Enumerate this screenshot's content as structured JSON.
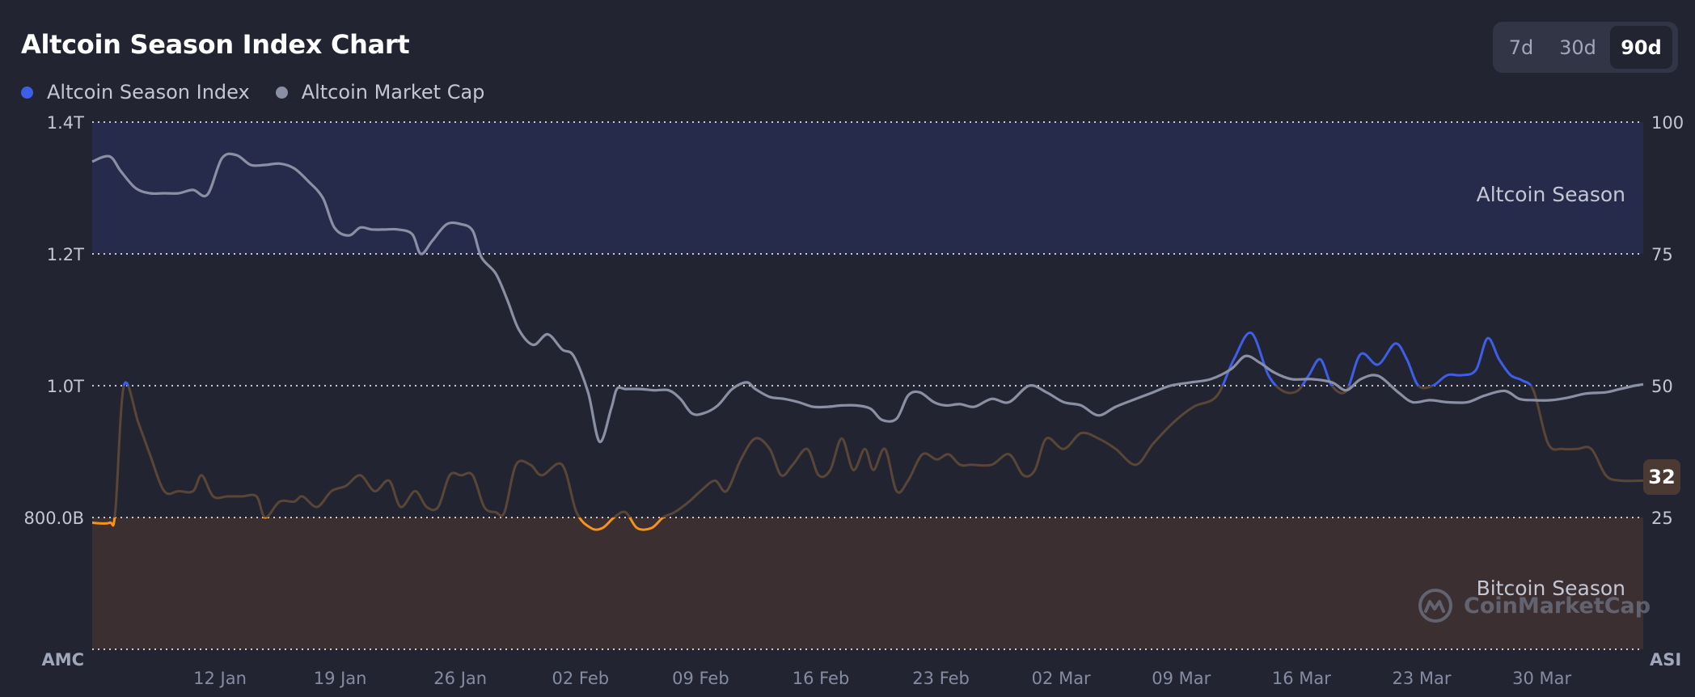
{
  "header": {
    "title": "Altcoin Season Index Chart",
    "legend": [
      {
        "label": "Altcoin Season Index",
        "color": "#3e5ee8"
      },
      {
        "label": "Altcoin Market Cap",
        "color": "#8a8fa3"
      }
    ],
    "ranges": [
      {
        "label": "7d",
        "active": false
      },
      {
        "label": "30d",
        "active": false
      },
      {
        "label": "90d",
        "active": true
      }
    ]
  },
  "chart_data": {
    "type": "line",
    "left_axis": {
      "title": "AMC",
      "ticks": [
        "1.4T",
        "1.2T",
        "1.0T",
        "800.0B"
      ],
      "range": [
        600,
        1400
      ],
      "unit": "B"
    },
    "right_axis": {
      "title": "ASI",
      "ticks": [
        "100",
        "75",
        "50",
        "25"
      ],
      "range": [
        0,
        100
      ]
    },
    "x_ticks": [
      "12 Jan",
      "19 Jan",
      "26 Jan",
      "02 Feb",
      "09 Feb",
      "16 Feb",
      "23 Feb",
      "02 Mar",
      "09 Mar",
      "16 Mar",
      "23 Mar",
      "30 Mar"
    ],
    "zones": [
      {
        "label": "Altcoin Season",
        "from": 75,
        "to": 100,
        "color": "#262b4b"
      },
      {
        "label": "Bitcoin Season",
        "from": 0,
        "to": 25,
        "color": "#3b2f32"
      }
    ],
    "current_index": "32",
    "series": [
      {
        "name": "Altcoin Market Cap",
        "axis": "left",
        "color": "#8a8fa3",
        "points": [
          [
            0,
            1340
          ],
          [
            0.6,
            1348
          ],
          [
            1,
            1325
          ],
          [
            1.5,
            1300
          ],
          [
            2,
            1292
          ],
          [
            2.5,
            1292
          ],
          [
            3,
            1292
          ],
          [
            3.5,
            1297
          ],
          [
            4,
            1290
          ],
          [
            4.5,
            1345
          ],
          [
            5,
            1350
          ],
          [
            5.5,
            1335
          ],
          [
            6,
            1335
          ],
          [
            6.5,
            1337
          ],
          [
            7,
            1330
          ],
          [
            7.5,
            1310
          ],
          [
            8,
            1285
          ],
          [
            8.4,
            1240
          ],
          [
            8.9,
            1228
          ],
          [
            9.3,
            1240
          ],
          [
            9.7,
            1237
          ],
          [
            10.2,
            1237
          ],
          [
            10.6,
            1237
          ],
          [
            11.1,
            1230
          ],
          [
            11.4,
            1200
          ],
          [
            11.8,
            1220
          ],
          [
            12.3,
            1245
          ],
          [
            12.8,
            1245
          ],
          [
            13.2,
            1235
          ],
          [
            13.5,
            1195
          ],
          [
            14,
            1170
          ],
          [
            14.4,
            1130
          ],
          [
            14.8,
            1085
          ],
          [
            15.3,
            1062
          ],
          [
            15.8,
            1078
          ],
          [
            16.3,
            1055
          ],
          [
            16.7,
            1045
          ],
          [
            17.2,
            990
          ],
          [
            17.6,
            915
          ],
          [
            18,
            965
          ],
          [
            18.2,
            995
          ],
          [
            18.5,
            995
          ],
          [
            19,
            995
          ],
          [
            19.5,
            993
          ],
          [
            20,
            993
          ],
          [
            20.4,
            980
          ],
          [
            20.8,
            958
          ],
          [
            21.2,
            958
          ],
          [
            21.7,
            970
          ],
          [
            22.2,
            995
          ],
          [
            22.7,
            1005
          ],
          [
            23,
            995
          ],
          [
            23.5,
            983
          ],
          [
            24,
            980
          ],
          [
            24.5,
            975
          ],
          [
            25,
            968
          ],
          [
            25.5,
            968
          ],
          [
            26,
            970
          ],
          [
            26.5,
            970
          ],
          [
            27,
            965
          ],
          [
            27.4,
            948
          ],
          [
            27.9,
            950
          ],
          [
            28.3,
            985
          ],
          [
            28.7,
            990
          ],
          [
            29.2,
            975
          ],
          [
            29.6,
            970
          ],
          [
            30.1,
            972
          ],
          [
            30.6,
            968
          ],
          [
            31.2,
            980
          ],
          [
            31.8,
            975
          ],
          [
            32.5,
            1000
          ],
          [
            33.1,
            990
          ],
          [
            33.7,
            975
          ],
          [
            34.3,
            970
          ],
          [
            34.9,
            955
          ],
          [
            35.5,
            968
          ],
          [
            36.2,
            980
          ],
          [
            36.8,
            990
          ],
          [
            37.4,
            1000
          ],
          [
            38.1,
            1005
          ],
          [
            38.8,
            1010
          ],
          [
            39.5,
            1025
          ],
          [
            40,
            1045
          ],
          [
            40.5,
            1035
          ],
          [
            41,
            1020
          ],
          [
            41.6,
            1010
          ],
          [
            42.3,
            1010
          ],
          [
            43,
            1005
          ],
          [
            43.5,
            993
          ],
          [
            44,
            1010
          ],
          [
            44.6,
            1015
          ],
          [
            45.3,
            990
          ],
          [
            45.8,
            975
          ],
          [
            46.4,
            978
          ],
          [
            47,
            975
          ],
          [
            47.7,
            975
          ],
          [
            48.3,
            985
          ],
          [
            49,
            992
          ],
          [
            49.5,
            980
          ],
          [
            50,
            978
          ],
          [
            50.6,
            978
          ],
          [
            51.2,
            982
          ],
          [
            51.8,
            988
          ],
          [
            52.5,
            990
          ],
          [
            53,
            995
          ],
          [
            53.5,
            1000
          ],
          [
            53.8,
            1002
          ]
        ]
      },
      {
        "name": "Altcoin Season Index",
        "axis": "right",
        "colors": {
          "altcoin": "#3e5ee8",
          "neutral": "#5a4636",
          "bitcoin": "#f7931a"
        },
        "points": [
          [
            0,
            24
          ],
          [
            0.6,
            24
          ],
          [
            0.8,
            26
          ],
          [
            1.1,
            50
          ],
          [
            1.6,
            43
          ],
          [
            2,
            37
          ],
          [
            2.5,
            30
          ],
          [
            3,
            30
          ],
          [
            3.5,
            30
          ],
          [
            3.8,
            33
          ],
          [
            4.2,
            29
          ],
          [
            4.7,
            29
          ],
          [
            5.2,
            29
          ],
          [
            5.7,
            29
          ],
          [
            6,
            25
          ],
          [
            6.5,
            28
          ],
          [
            7,
            28
          ],
          [
            7.3,
            29
          ],
          [
            7.8,
            27
          ],
          [
            8.3,
            30
          ],
          [
            8.8,
            31
          ],
          [
            9.3,
            33
          ],
          [
            9.8,
            30
          ],
          [
            10.3,
            32
          ],
          [
            10.7,
            27
          ],
          [
            11.2,
            30
          ],
          [
            11.6,
            27
          ],
          [
            12,
            27
          ],
          [
            12.4,
            33
          ],
          [
            12.8,
            33
          ],
          [
            13.2,
            33
          ],
          [
            13.6,
            27
          ],
          [
            14,
            26
          ],
          [
            14.3,
            26
          ],
          [
            14.7,
            35
          ],
          [
            15.2,
            35
          ],
          [
            15.6,
            33
          ],
          [
            16.3,
            35
          ],
          [
            16.8,
            26
          ],
          [
            17.3,
            23
          ],
          [
            17.7,
            23
          ],
          [
            18.1,
            25
          ],
          [
            18.5,
            26
          ],
          [
            18.9,
            23
          ],
          [
            19.4,
            23
          ],
          [
            19.8,
            25
          ],
          [
            20.2,
            26
          ],
          [
            20.7,
            28
          ],
          [
            21.1,
            30
          ],
          [
            21.6,
            32
          ],
          [
            22,
            30
          ],
          [
            22.5,
            36
          ],
          [
            23,
            40
          ],
          [
            23.5,
            38
          ],
          [
            23.9,
            33
          ],
          [
            24.3,
            35
          ],
          [
            24.8,
            38
          ],
          [
            25.2,
            33
          ],
          [
            25.6,
            34
          ],
          [
            26,
            40
          ],
          [
            26.4,
            34
          ],
          [
            26.8,
            38
          ],
          [
            27.1,
            34
          ],
          [
            27.5,
            38
          ],
          [
            27.9,
            30
          ],
          [
            28.3,
            32
          ],
          [
            28.8,
            37
          ],
          [
            29.3,
            36
          ],
          [
            29.7,
            37
          ],
          [
            30.1,
            35
          ],
          [
            30.5,
            35
          ],
          [
            31.2,
            35
          ],
          [
            31.8,
            37
          ],
          [
            32.3,
            33
          ],
          [
            32.7,
            34
          ],
          [
            33.1,
            40
          ],
          [
            33.7,
            38
          ],
          [
            34.3,
            41
          ],
          [
            34.9,
            40
          ],
          [
            35.5,
            38
          ],
          [
            36.2,
            35
          ],
          [
            36.8,
            39
          ],
          [
            37.5,
            43
          ],
          [
            38.2,
            46
          ],
          [
            39,
            48
          ],
          [
            39.6,
            55
          ],
          [
            40.2,
            60
          ],
          [
            40.8,
            52
          ],
          [
            41.3,
            49
          ],
          [
            41.8,
            49
          ],
          [
            42.2,
            52
          ],
          [
            42.6,
            55
          ],
          [
            43,
            50
          ],
          [
            43.5,
            49
          ],
          [
            44,
            56
          ],
          [
            44.6,
            54
          ],
          [
            45.2,
            58
          ],
          [
            45.6,
            55
          ],
          [
            46,
            50
          ],
          [
            46.5,
            50
          ],
          [
            47,
            52
          ],
          [
            47.5,
            52
          ],
          [
            48,
            53
          ],
          [
            48.4,
            59
          ],
          [
            48.8,
            55
          ],
          [
            49.2,
            52
          ],
          [
            49.6,
            51
          ],
          [
            50,
            49
          ],
          [
            50.5,
            39
          ],
          [
            51,
            38
          ],
          [
            51.5,
            38
          ],
          [
            52,
            38
          ],
          [
            52.5,
            33
          ],
          [
            53,
            32
          ],
          [
            53.8,
            32
          ]
        ]
      }
    ]
  }
}
